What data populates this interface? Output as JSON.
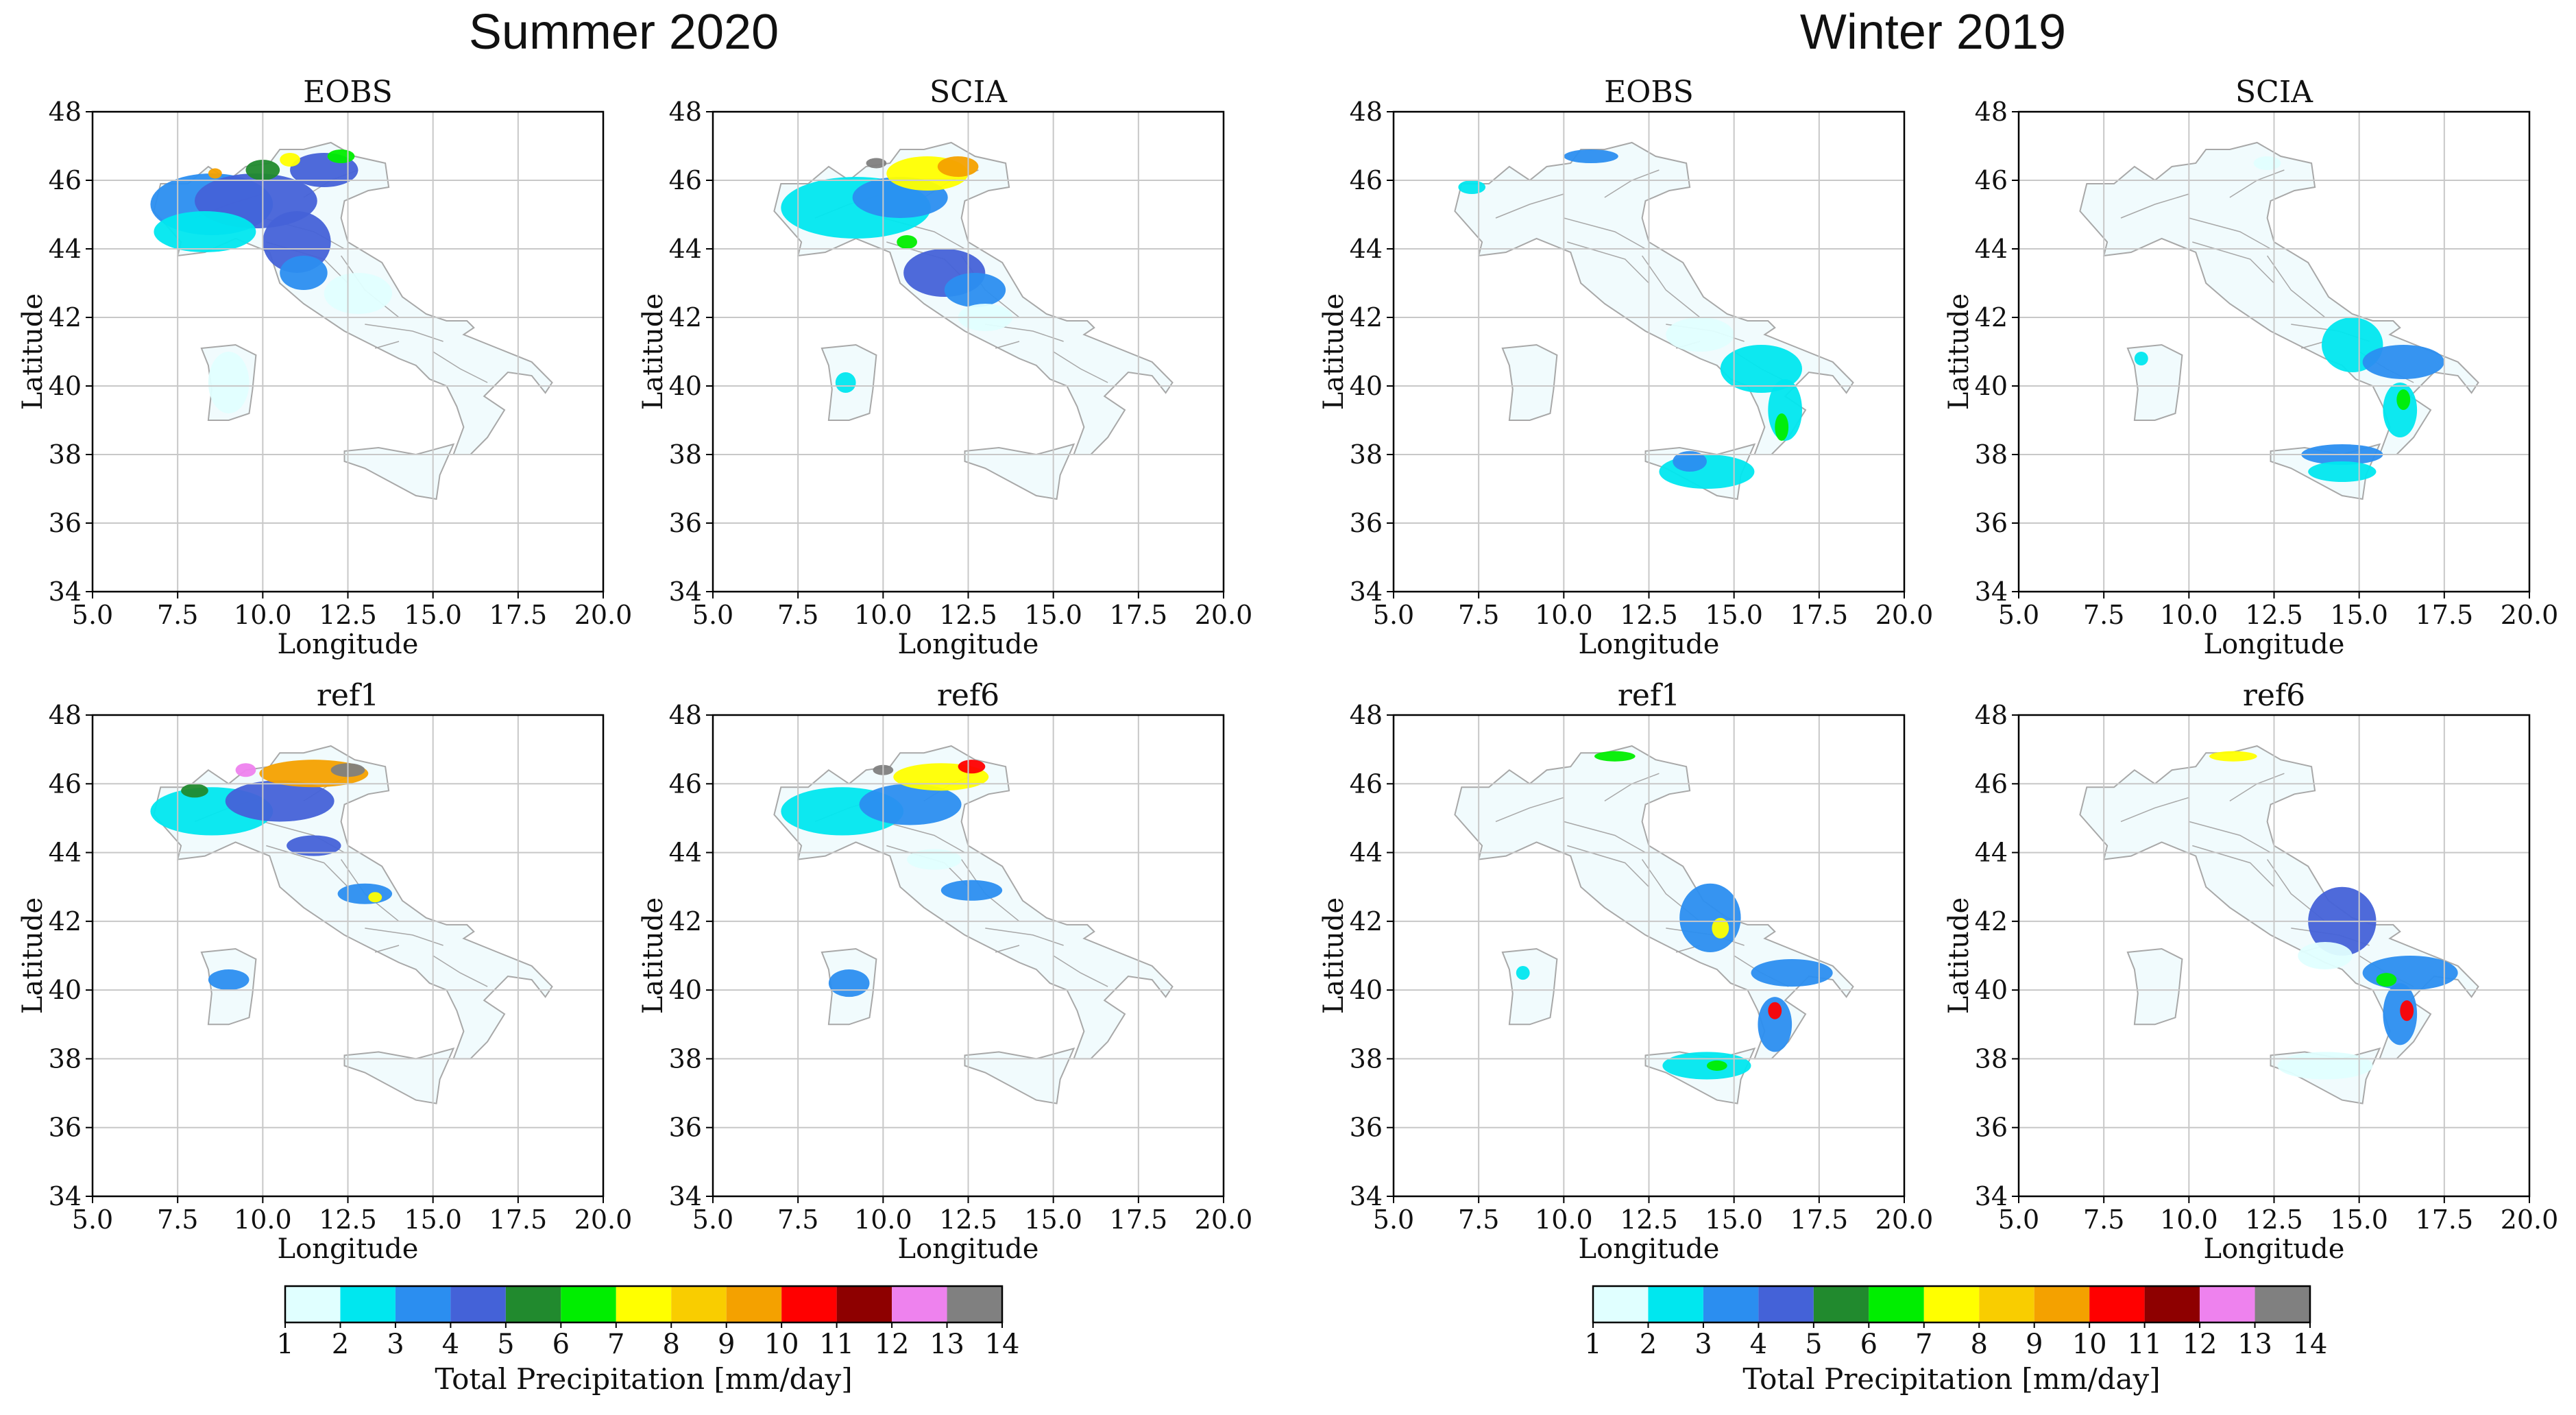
{
  "groups": [
    {
      "title": "Summer 2020"
    },
    {
      "title": "Winter 2019"
    }
  ],
  "panels": [
    {
      "title": "EOBS",
      "group": "Summer 2020",
      "xlabel": "Longitude",
      "ylabel": "Latitude",
      "xticks": [
        "5.0",
        "7.5",
        "10.0",
        "12.5",
        "15.0",
        "17.5",
        "20.0"
      ],
      "yticks": [
        "34",
        "36",
        "38",
        "40",
        "42",
        "44",
        "46",
        "48"
      ],
      "rain": [
        {
          "cls": 3,
          "lon": 8.5,
          "lat": 45.3,
          "rx": 1.8,
          "ry": 0.9
        },
        {
          "cls": 4,
          "lon": 9.8,
          "lat": 45.4,
          "rx": 1.8,
          "ry": 0.8
        },
        {
          "cls": 2,
          "lon": 8.3,
          "lat": 44.5,
          "rx": 1.5,
          "ry": 0.6
        },
        {
          "cls": 4,
          "lon": 11.0,
          "lat": 44.2,
          "rx": 1.0,
          "ry": 0.9
        },
        {
          "cls": 3,
          "lon": 11.2,
          "lat": 43.3,
          "rx": 0.7,
          "ry": 0.5
        },
        {
          "cls": 4,
          "lon": 11.8,
          "lat": 46.3,
          "rx": 1.0,
          "ry": 0.5
        },
        {
          "cls": 5,
          "lon": 10.0,
          "lat": 46.3,
          "rx": 0.5,
          "ry": 0.3
        },
        {
          "cls": 7,
          "lon": 10.8,
          "lat": 46.6,
          "rx": 0.3,
          "ry": 0.2
        },
        {
          "cls": 6,
          "lon": 12.3,
          "lat": 46.7,
          "rx": 0.4,
          "ry": 0.2
        },
        {
          "cls": 9,
          "lon": 8.6,
          "lat": 46.2,
          "rx": 0.2,
          "ry": 0.15
        },
        {
          "cls": 1,
          "lon": 12.8,
          "lat": 42.7,
          "rx": 1.0,
          "ry": 0.6
        },
        {
          "cls": 1,
          "lon": 9.0,
          "lat": 40.1,
          "rx": 0.6,
          "ry": 0.9
        }
      ]
    },
    {
      "title": "SCIA",
      "group": "Summer 2020",
      "xlabel": "Longitude",
      "ylabel": "Latitude",
      "xticks": [
        "5.0",
        "7.5",
        "10.0",
        "12.5",
        "15.0",
        "17.5",
        "20.0"
      ],
      "yticks": [
        "34",
        "36",
        "38",
        "40",
        "42",
        "44",
        "46",
        "48"
      ],
      "rain": [
        {
          "cls": 2,
          "lon": 9.2,
          "lat": 45.2,
          "rx": 2.2,
          "ry": 0.9
        },
        {
          "cls": 3,
          "lon": 10.5,
          "lat": 45.5,
          "rx": 1.4,
          "ry": 0.6
        },
        {
          "cls": 7,
          "lon": 11.3,
          "lat": 46.2,
          "rx": 1.2,
          "ry": 0.5
        },
        {
          "cls": 9,
          "lon": 12.2,
          "lat": 46.4,
          "rx": 0.6,
          "ry": 0.3
        },
        {
          "cls": 13,
          "lon": 9.8,
          "lat": 46.5,
          "rx": 0.3,
          "ry": 0.15
        },
        {
          "cls": 4,
          "lon": 11.8,
          "lat": 43.3,
          "rx": 1.2,
          "ry": 0.7
        },
        {
          "cls": 3,
          "lon": 12.7,
          "lat": 42.8,
          "rx": 0.9,
          "ry": 0.5
        },
        {
          "cls": 6,
          "lon": 10.7,
          "lat": 44.2,
          "rx": 0.3,
          "ry": 0.2
        },
        {
          "cls": 2,
          "lon": 8.9,
          "lat": 40.1,
          "rx": 0.3,
          "ry": 0.3
        },
        {
          "cls": 1,
          "lon": 13.0,
          "lat": 42.0,
          "rx": 0.8,
          "ry": 0.4
        }
      ]
    },
    {
      "title": "EOBS",
      "group": "Winter 2019",
      "xlabel": "Longitude",
      "ylabel": "Latitude",
      "xticks": [
        "5.0",
        "7.5",
        "10.0",
        "12.5",
        "15.0",
        "17.5",
        "20.0"
      ],
      "yticks": [
        "34",
        "36",
        "38",
        "40",
        "42",
        "44",
        "46",
        "48"
      ],
      "rain": [
        {
          "cls": 2,
          "lon": 15.8,
          "lat": 40.5,
          "rx": 1.2,
          "ry": 0.7
        },
        {
          "cls": 2,
          "lon": 16.5,
          "lat": 39.3,
          "rx": 0.5,
          "ry": 0.9
        },
        {
          "cls": 6,
          "lon": 16.4,
          "lat": 38.8,
          "rx": 0.2,
          "ry": 0.4
        },
        {
          "cls": 2,
          "lon": 14.2,
          "lat": 37.5,
          "rx": 1.4,
          "ry": 0.5
        },
        {
          "cls": 3,
          "lon": 13.7,
          "lat": 37.8,
          "rx": 0.5,
          "ry": 0.3
        },
        {
          "cls": 1,
          "lon": 14.0,
          "lat": 41.5,
          "rx": 1.0,
          "ry": 0.5
        },
        {
          "cls": 3,
          "lon": 10.8,
          "lat": 46.7,
          "rx": 0.8,
          "ry": 0.2
        },
        {
          "cls": 2,
          "lon": 7.3,
          "lat": 45.8,
          "rx": 0.4,
          "ry": 0.2
        }
      ]
    },
    {
      "title": "SCIA",
      "group": "Winter 2019",
      "xlabel": "Longitude",
      "ylabel": "Latitude",
      "xticks": [
        "5.0",
        "7.5",
        "10.0",
        "12.5",
        "15.0",
        "17.5",
        "20.0"
      ],
      "yticks": [
        "34",
        "36",
        "38",
        "40",
        "42",
        "44",
        "46",
        "48"
      ],
      "rain": [
        {
          "cls": 2,
          "lon": 14.8,
          "lat": 41.2,
          "rx": 0.9,
          "ry": 0.8
        },
        {
          "cls": 3,
          "lon": 16.3,
          "lat": 40.7,
          "rx": 1.2,
          "ry": 0.5
        },
        {
          "cls": 2,
          "lon": 16.2,
          "lat": 39.3,
          "rx": 0.5,
          "ry": 0.8
        },
        {
          "cls": 6,
          "lon": 16.3,
          "lat": 39.6,
          "rx": 0.2,
          "ry": 0.3
        },
        {
          "cls": 3,
          "lon": 14.5,
          "lat": 38.0,
          "rx": 1.2,
          "ry": 0.3
        },
        {
          "cls": 2,
          "lon": 14.5,
          "lat": 37.5,
          "rx": 1.0,
          "ry": 0.3
        },
        {
          "cls": 1,
          "lon": 12.3,
          "lat": 46.5,
          "rx": 0.4,
          "ry": 0.2
        },
        {
          "cls": 2,
          "lon": 8.6,
          "lat": 40.8,
          "rx": 0.2,
          "ry": 0.2
        }
      ]
    },
    {
      "title": "ref1",
      "group": "Summer 2020",
      "xlabel": "Longitude",
      "ylabel": "Latitude",
      "xticks": [
        "5.0",
        "7.5",
        "10.0",
        "12.5",
        "15.0",
        "17.5",
        "20.0"
      ],
      "yticks": [
        "34",
        "36",
        "38",
        "40",
        "42",
        "44",
        "46",
        "48"
      ],
      "rain": [
        {
          "cls": 2,
          "lon": 8.5,
          "lat": 45.2,
          "rx": 1.8,
          "ry": 0.7
        },
        {
          "cls": 4,
          "lon": 10.5,
          "lat": 45.5,
          "rx": 1.6,
          "ry": 0.6
        },
        {
          "cls": 9,
          "lon": 11.5,
          "lat": 46.3,
          "rx": 1.6,
          "ry": 0.4
        },
        {
          "cls": 13,
          "lon": 12.5,
          "lat": 46.4,
          "rx": 0.5,
          "ry": 0.2
        },
        {
          "cls": 12,
          "lon": 9.5,
          "lat": 46.4,
          "rx": 0.3,
          "ry": 0.2
        },
        {
          "cls": 5,
          "lon": 8.0,
          "lat": 45.8,
          "rx": 0.4,
          "ry": 0.2
        },
        {
          "cls": 3,
          "lon": 13.0,
          "lat": 42.8,
          "rx": 0.8,
          "ry": 0.3
        },
        {
          "cls": 7,
          "lon": 13.3,
          "lat": 42.7,
          "rx": 0.2,
          "ry": 0.15
        },
        {
          "cls": 3,
          "lon": 9.0,
          "lat": 40.3,
          "rx": 0.6,
          "ry": 0.3
        },
        {
          "cls": 4,
          "lon": 11.5,
          "lat": 44.2,
          "rx": 0.8,
          "ry": 0.3
        }
      ]
    },
    {
      "title": "ref6",
      "group": "Summer 2020",
      "xlabel": "Longitude",
      "ylabel": "Latitude",
      "xticks": [
        "5.0",
        "7.5",
        "10.0",
        "12.5",
        "15.0",
        "17.5",
        "20.0"
      ],
      "yticks": [
        "34",
        "36",
        "38",
        "40",
        "42",
        "44",
        "46",
        "48"
      ],
      "rain": [
        {
          "cls": 2,
          "lon": 8.8,
          "lat": 45.2,
          "rx": 1.8,
          "ry": 0.7
        },
        {
          "cls": 3,
          "lon": 10.8,
          "lat": 45.4,
          "rx": 1.5,
          "ry": 0.6
        },
        {
          "cls": 7,
          "lon": 11.7,
          "lat": 46.2,
          "rx": 1.4,
          "ry": 0.4
        },
        {
          "cls": 13,
          "lon": 10.0,
          "lat": 46.4,
          "rx": 0.3,
          "ry": 0.15
        },
        {
          "cls": 10,
          "lon": 12.6,
          "lat": 46.5,
          "rx": 0.4,
          "ry": 0.2
        },
        {
          "cls": 3,
          "lon": 12.6,
          "lat": 42.9,
          "rx": 0.9,
          "ry": 0.3
        },
        {
          "cls": 3,
          "lon": 9.0,
          "lat": 40.2,
          "rx": 0.6,
          "ry": 0.4
        },
        {
          "cls": 1,
          "lon": 11.5,
          "lat": 43.8,
          "rx": 0.8,
          "ry": 0.3
        }
      ]
    },
    {
      "title": "ref1",
      "group": "Winter 2019",
      "xlabel": "Longitude",
      "ylabel": "Latitude",
      "xticks": [
        "5.0",
        "7.5",
        "10.0",
        "12.5",
        "15.0",
        "17.5",
        "20.0"
      ],
      "yticks": [
        "34",
        "36",
        "38",
        "40",
        "42",
        "44",
        "46",
        "48"
      ],
      "rain": [
        {
          "cls": 3,
          "lon": 14.3,
          "lat": 42.1,
          "rx": 0.9,
          "ry": 1.0
        },
        {
          "cls": 7,
          "lon": 14.6,
          "lat": 41.8,
          "rx": 0.25,
          "ry": 0.3
        },
        {
          "cls": 3,
          "lon": 16.7,
          "lat": 40.5,
          "rx": 1.2,
          "ry": 0.4
        },
        {
          "cls": 3,
          "lon": 16.2,
          "lat": 39.0,
          "rx": 0.5,
          "ry": 0.8
        },
        {
          "cls": 10,
          "lon": 16.2,
          "lat": 39.4,
          "rx": 0.2,
          "ry": 0.25
        },
        {
          "cls": 2,
          "lon": 14.2,
          "lat": 37.8,
          "rx": 1.3,
          "ry": 0.4
        },
        {
          "cls": 6,
          "lon": 14.5,
          "lat": 37.8,
          "rx": 0.3,
          "ry": 0.15
        },
        {
          "cls": 6,
          "lon": 11.5,
          "lat": 46.8,
          "rx": 0.6,
          "ry": 0.15
        },
        {
          "cls": 2,
          "lon": 8.8,
          "lat": 40.5,
          "rx": 0.2,
          "ry": 0.2
        }
      ]
    },
    {
      "title": "ref6",
      "group": "Winter 2019",
      "xlabel": "Longitude",
      "ylabel": "Latitude",
      "xticks": [
        "5.0",
        "7.5",
        "10.0",
        "12.5",
        "15.0",
        "17.5",
        "20.0"
      ],
      "yticks": [
        "34",
        "36",
        "38",
        "40",
        "42",
        "44",
        "46",
        "48"
      ],
      "rain": [
        {
          "cls": 4,
          "lon": 14.5,
          "lat": 42.0,
          "rx": 1.0,
          "ry": 1.0
        },
        {
          "cls": 3,
          "lon": 16.5,
          "lat": 40.5,
          "rx": 1.4,
          "ry": 0.5
        },
        {
          "cls": 6,
          "lon": 15.8,
          "lat": 40.3,
          "rx": 0.3,
          "ry": 0.2
        },
        {
          "cls": 3,
          "lon": 16.2,
          "lat": 39.3,
          "rx": 0.5,
          "ry": 0.9
        },
        {
          "cls": 10,
          "lon": 16.4,
          "lat": 39.4,
          "rx": 0.2,
          "ry": 0.3
        },
        {
          "cls": 1,
          "lon": 14.0,
          "lat": 37.8,
          "rx": 1.4,
          "ry": 0.4
        },
        {
          "cls": 7,
          "lon": 11.3,
          "lat": 46.8,
          "rx": 0.7,
          "ry": 0.15
        },
        {
          "cls": 1,
          "lon": 14.0,
          "lat": 41.0,
          "rx": 0.8,
          "ry": 0.4
        }
      ]
    }
  ],
  "colorbars": [
    {
      "label": "Total Precipitation [mm/day]",
      "ticks": [
        "1",
        "2",
        "3",
        "4",
        "5",
        "6",
        "7",
        "8",
        "9",
        "10",
        "11",
        "12",
        "13",
        "14"
      ]
    },
    {
      "label": "Total Precipitation [mm/day]",
      "ticks": [
        "1",
        "2",
        "3",
        "4",
        "5",
        "6",
        "7",
        "8",
        "9",
        "10",
        "11",
        "12",
        "13",
        "14"
      ]
    }
  ],
  "colors": [
    "#e0ffff",
    "#00e7ef",
    "#2b8ef0",
    "#4462d8",
    "#218a2e",
    "#00ee00",
    "#ffff00",
    "#f9cd00",
    "#f4a100",
    "#ff0000",
    "#8e0000",
    "#ee82ee",
    "#808080"
  ],
  "map_bounds": {
    "lon": [
      5.0,
      20.0
    ],
    "lat": [
      34,
      48
    ]
  },
  "base_map": {
    "land_color": "#f1fbfd",
    "border_color": "#a8a8a8",
    "grid_color": "#c8c8c8"
  }
}
